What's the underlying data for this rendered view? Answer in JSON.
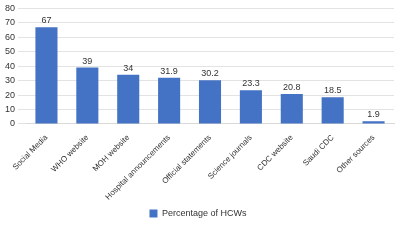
{
  "chart_data": {
    "type": "bar",
    "categories": [
      "Social Media",
      "WHO website",
      "MOH website",
      "Hospital announcements",
      "Official statements",
      "Science journals",
      "CDC website",
      "Saudi CDC",
      "Other sources"
    ],
    "series": [
      {
        "name": "Percentage of HCWs",
        "color": "#4472c4",
        "values": [
          67,
          39,
          34,
          31.9,
          30.2,
          23.3,
          20.8,
          18.5,
          1.9
        ]
      }
    ],
    "ylim": [
      0,
      80
    ],
    "yticks": [
      0,
      10,
      20,
      30,
      40,
      50,
      60,
      70,
      80
    ],
    "grid": true,
    "legend": "bottom",
    "data_labels": true
  }
}
